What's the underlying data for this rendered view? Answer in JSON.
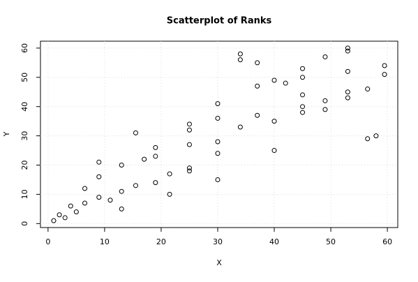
{
  "chart_data": {
    "type": "scatter",
    "title": "Scatterplot of Ranks",
    "x_label": "X",
    "y_label": "Y",
    "x": [
      1,
      2,
      3,
      4,
      5,
      6.5,
      6.5,
      9,
      9,
      9,
      11,
      13,
      13,
      13,
      15.5,
      15.5,
      17,
      19,
      19,
      19,
      21.5,
      21.5,
      25,
      25,
      25,
      25,
      25,
      30,
      30,
      30,
      30,
      30,
      34,
      34,
      34,
      37,
      37,
      37,
      40,
      40,
      40,
      42,
      45,
      45,
      45,
      45,
      45,
      49,
      49,
      49,
      53,
      53,
      53,
      53,
      53,
      56.5,
      56.5,
      58,
      59.5,
      59.5
    ],
    "y": [
      1,
      3,
      2,
      6,
      4,
      12,
      7,
      21,
      16,
      9,
      8,
      20,
      11,
      5,
      31,
      13,
      22,
      26,
      23,
      14,
      17,
      10,
      34,
      32,
      27,
      19,
      18,
      41,
      36,
      28,
      24,
      15,
      58,
      56,
      33,
      55,
      47,
      37,
      49,
      35,
      25,
      48,
      53,
      50,
      44,
      40,
      38,
      57,
      42,
      39,
      60,
      59,
      52,
      45,
      43,
      46,
      29,
      30,
      54,
      51
    ],
    "xlim": [
      -1.34,
      61.84
    ],
    "ylim": [
      -1.36,
      62.36
    ],
    "xticks": [
      0,
      10,
      20,
      30,
      40,
      50,
      60
    ],
    "yticks": [
      0,
      10,
      20,
      30,
      40,
      50,
      60
    ],
    "grid": true,
    "color": "#000000"
  }
}
